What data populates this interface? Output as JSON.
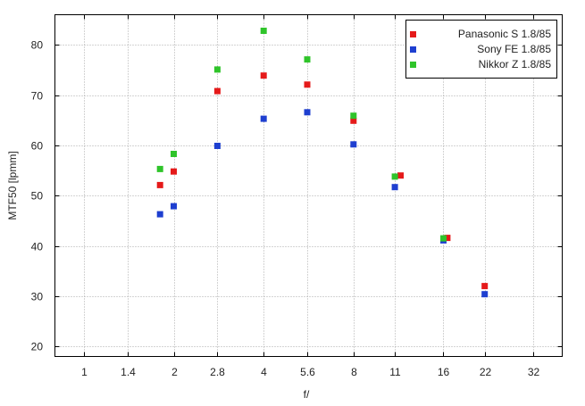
{
  "chart_data": {
    "type": "scatter",
    "title": "",
    "xlabel": "f/",
    "ylabel": "MTF50 [lpmm]",
    "x_scale": "log2",
    "x_ticks": [
      "1",
      "1.4",
      "2",
      "2.8",
      "4",
      "5.6",
      "8",
      "11",
      "16",
      "22",
      "32"
    ],
    "xlim": [
      0.8,
      40
    ],
    "y_ticks": [
      "20",
      "30",
      "40",
      "50",
      "60",
      "70",
      "80"
    ],
    "ylim": [
      18,
      86
    ],
    "grid": true,
    "legend_position": "top-right",
    "series": [
      {
        "name": "Panasonic S 1.8/85",
        "color": "#e51a1a",
        "points": [
          [
            1.8,
            52.1
          ],
          [
            2,
            54.8
          ],
          [
            2.8,
            70.8
          ],
          [
            4,
            73.9
          ],
          [
            5.6,
            72.1
          ],
          [
            8,
            64.9
          ],
          [
            11.5,
            54.0
          ],
          [
            16.5,
            41.6
          ],
          [
            22,
            32.0
          ]
        ]
      },
      {
        "name": "Sony FE 1.8/85",
        "color": "#1e3fd0",
        "points": [
          [
            1.8,
            46.3
          ],
          [
            2,
            47.9
          ],
          [
            2.8,
            59.9
          ],
          [
            4,
            65.3
          ],
          [
            5.6,
            66.6
          ],
          [
            8,
            60.2
          ],
          [
            11,
            51.7
          ],
          [
            16,
            41.1
          ],
          [
            22,
            30.4
          ]
        ]
      },
      {
        "name": "Nikkor Z 1.8/85",
        "color": "#2fc42a",
        "points": [
          [
            1.8,
            55.3
          ],
          [
            2,
            58.3
          ],
          [
            2.8,
            75.1
          ],
          [
            4,
            82.8
          ],
          [
            5.6,
            77.1
          ],
          [
            8,
            65.9
          ],
          [
            11,
            53.8
          ],
          [
            16,
            41.5
          ]
        ]
      }
    ]
  }
}
